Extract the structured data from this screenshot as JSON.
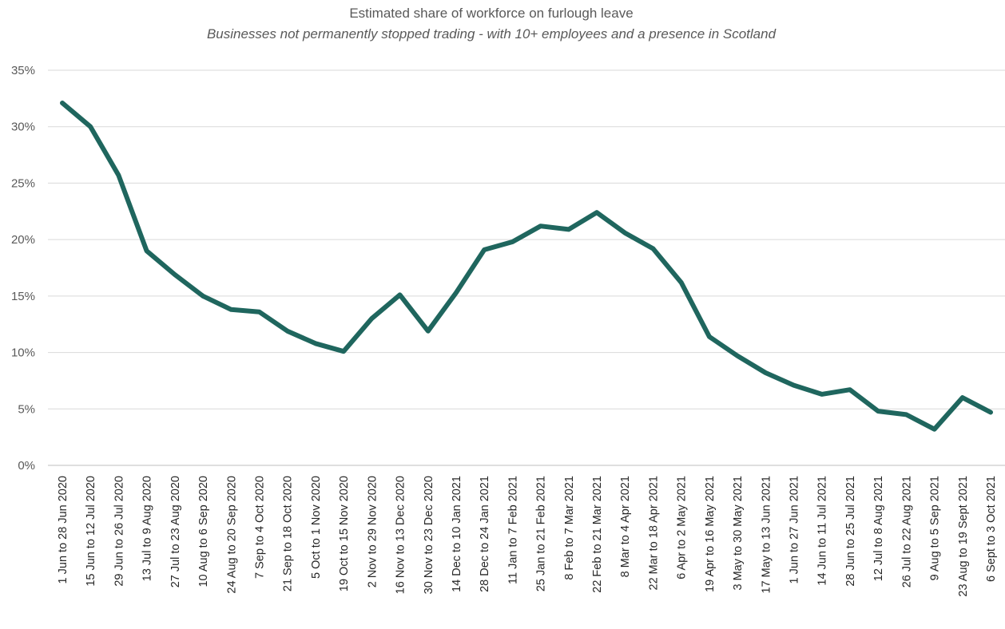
{
  "chart_data": {
    "type": "line",
    "title": "Estimated share of workforce on furlough leave",
    "subtitle": "Businesses not permanently stopped trading - with 10+ employees and a presence in Scotland",
    "xlabel": "",
    "ylabel": "",
    "ylim": [
      0,
      35
    ],
    "yticks": [
      "0%",
      "5%",
      "10%",
      "15%",
      "20%",
      "25%",
      "30%",
      "35%"
    ],
    "ytick_values": [
      0,
      5,
      10,
      15,
      20,
      25,
      30,
      35
    ],
    "grid": true,
    "legend": "none",
    "line_color": "#1f665e",
    "categories": [
      "1 Jun to 28 Jun 2020",
      "15 Jun to 12 Jul 2020",
      "29 Jun to 26 Jul 2020",
      "13 Jul to 9 Aug 2020",
      "27 Jul to 23 Aug 2020",
      "10 Aug to 6 Sep 2020",
      "24 Aug to 20 Sep 2020",
      "7 Sep to 4 Oct 2020",
      "21 Sep to 18 Oct 2020",
      "5 Oct to 1 Nov 2020",
      "19 Oct to 15 Nov 2020",
      "2 Nov to 29 Nov 2020",
      "16 Nov to 13 Dec 2020",
      "30 Nov to 23 Dec 2020",
      "14 Dec to 10 Jan 2021",
      "28 Dec to 24 Jan 2021",
      "11 Jan to 7 Feb 2021",
      "25 Jan to 21 Feb 2021",
      "8 Feb to 7 Mar 2021",
      "22 Feb to 21 Mar 2021",
      "8 Mar to 4 Apr 2021",
      "22 Mar to 18 Apr 2021",
      "6 Apr to 2 May 2021",
      "19 Apr to 16 May 2021",
      "3 May to 30 May 2021",
      "17 May to 13 Jun 2021",
      "1 Jun to 27 Jun 2021",
      "14 Jun to 11 Jul 2021",
      "28 Jun to 25 Jul 2021",
      "12 Jul to 8 Aug 2021",
      "26 Jul to 22 Aug 2021",
      "9 Aug to 5 Sep 2021",
      "23 Aug to 19 Sept 2021",
      "6 Sept to 3 Oct 2021"
    ],
    "series": [
      {
        "values": [
          32.1,
          30.0,
          25.7,
          19.0,
          16.9,
          15.0,
          13.8,
          13.6,
          11.9,
          10.8,
          10.1,
          13.0,
          15.1,
          11.9,
          15.3,
          19.1,
          19.8,
          21.2,
          20.9,
          22.4,
          20.6,
          19.2,
          16.2,
          11.4,
          9.7,
          8.2,
          7.1,
          6.3,
          6.7,
          4.8,
          4.5,
          3.2,
          6.0,
          4.7
        ]
      }
    ]
  }
}
